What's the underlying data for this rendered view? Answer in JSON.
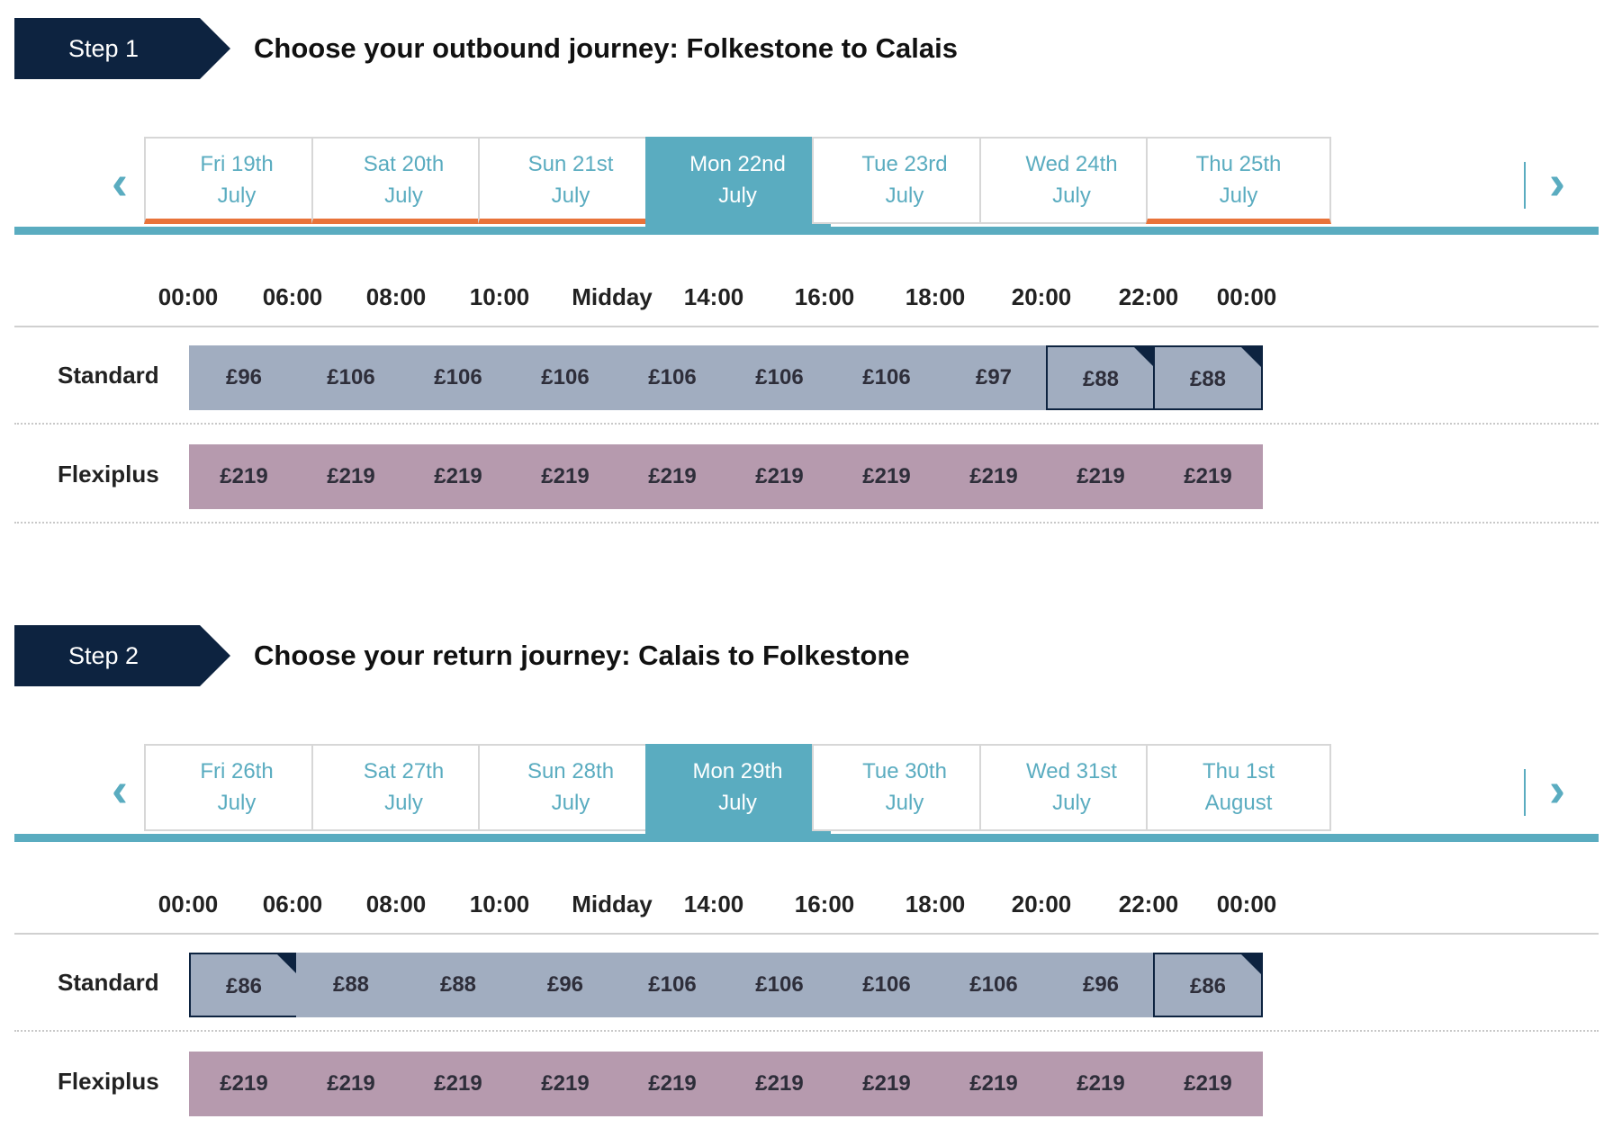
{
  "steps": [
    {
      "badge": "Step 1",
      "title": "Choose your outbound journey: Folkestone to Calais",
      "dates": [
        {
          "day": "Fri 19th",
          "month": "July",
          "selected": false,
          "offer": true
        },
        {
          "day": "Sat 20th",
          "month": "July",
          "selected": false,
          "offer": true
        },
        {
          "day": "Sun 21st",
          "month": "July",
          "selected": false,
          "offer": true
        },
        {
          "day": "Mon 22nd",
          "month": "July",
          "selected": true,
          "offer": false
        },
        {
          "day": "Tue 23rd",
          "month": "July",
          "selected": false,
          "offer": false
        },
        {
          "day": "Wed 24th",
          "month": "July",
          "selected": false,
          "offer": false
        },
        {
          "day": "Thu 25th",
          "month": "July",
          "selected": false,
          "offer": true
        }
      ],
      "times": [
        "00:00",
        "06:00",
        "08:00",
        "10:00",
        "Midday",
        "14:00",
        "16:00",
        "18:00",
        "20:00",
        "22:00",
        "00:00"
      ],
      "standard_label": "Standard",
      "standard": [
        {
          "price": "£96",
          "best": false
        },
        {
          "price": "£106",
          "best": false
        },
        {
          "price": "£106",
          "best": false
        },
        {
          "price": "£106",
          "best": false
        },
        {
          "price": "£106",
          "best": false
        },
        {
          "price": "£106",
          "best": false
        },
        {
          "price": "£106",
          "best": false
        },
        {
          "price": "£97",
          "best": false
        },
        {
          "price": "£88",
          "best": true
        },
        {
          "price": "£88",
          "best": true
        }
      ],
      "flexi_label": "Flexiplus",
      "flexi": [
        "£219",
        "£219",
        "£219",
        "£219",
        "£219",
        "£219",
        "£219",
        "£219",
        "£219",
        "£219"
      ]
    },
    {
      "badge": "Step 2",
      "title": "Choose your return journey: Calais to Folkestone",
      "dates": [
        {
          "day": "Fri 26th",
          "month": "July",
          "selected": false,
          "offer": false
        },
        {
          "day": "Sat 27th",
          "month": "July",
          "selected": false,
          "offer": false
        },
        {
          "day": "Sun 28th",
          "month": "July",
          "selected": false,
          "offer": false
        },
        {
          "day": "Mon 29th",
          "month": "July",
          "selected": true,
          "offer": false
        },
        {
          "day": "Tue 30th",
          "month": "July",
          "selected": false,
          "offer": false
        },
        {
          "day": "Wed 31st",
          "month": "July",
          "selected": false,
          "offer": false
        },
        {
          "day": "Thu 1st",
          "month": "August",
          "selected": false,
          "offer": false
        }
      ],
      "times": [
        "00:00",
        "06:00",
        "08:00",
        "10:00",
        "Midday",
        "14:00",
        "16:00",
        "18:00",
        "20:00",
        "22:00",
        "00:00"
      ],
      "standard_label": "Standard",
      "standard": [
        {
          "price": "£86",
          "best": true
        },
        {
          "price": "£88",
          "best": false
        },
        {
          "price": "£88",
          "best": false
        },
        {
          "price": "£96",
          "best": false
        },
        {
          "price": "£106",
          "best": false
        },
        {
          "price": "£106",
          "best": false
        },
        {
          "price": "£106",
          "best": false
        },
        {
          "price": "£106",
          "best": false
        },
        {
          "price": "£96",
          "best": false
        },
        {
          "price": "£86",
          "best": true
        }
      ],
      "flexi_label": "Flexiplus",
      "flexi": [
        "£219",
        "£219",
        "£219",
        "£219",
        "£219",
        "£219",
        "£219",
        "£219",
        "£219",
        "£219"
      ]
    }
  ],
  "icons": {
    "prev": "chevron-left-icon",
    "next": "chevron-right-icon",
    "prev_glyph": "‹",
    "next_glyph": "›"
  },
  "colors": {
    "accent": "#5aacc0",
    "navy": "#0d2340",
    "offer": "#e8733a",
    "standard": "#a1adc0",
    "flexi": "#b69aae"
  }
}
